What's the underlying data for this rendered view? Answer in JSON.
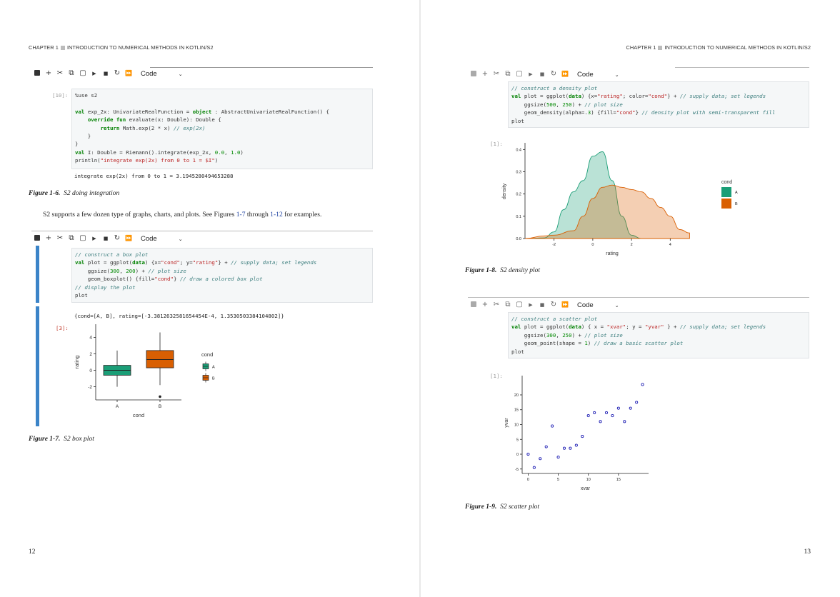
{
  "left_page": {
    "header": {
      "chapter": "CHAPTER 1",
      "title": "INTRODUCTION TO NUMERICAL METHODS IN KOTLIN/S2"
    },
    "page_number": "12",
    "toolbar1": {
      "cell_type": "Code"
    },
    "cell1": {
      "prompt": "[10]:",
      "code_lines": [
        [
          {
            "c": "tx",
            "t": "%use s2"
          }
        ],
        [],
        [
          {
            "c": "kw",
            "t": "val "
          },
          {
            "c": "tx",
            "t": "exp_2x: UnivariateRealFunction = "
          },
          {
            "c": "kw",
            "t": "object"
          },
          {
            "c": "tx",
            "t": " : AbstractUnivariateRealFunction() {"
          }
        ],
        [
          {
            "c": "tx",
            "t": "    "
          },
          {
            "c": "kw",
            "t": "override fun "
          },
          {
            "c": "tx",
            "t": "evaluate(x: Double): Double {"
          }
        ],
        [
          {
            "c": "tx",
            "t": "        "
          },
          {
            "c": "kw",
            "t": "return "
          },
          {
            "c": "tx",
            "t": "Math.exp(2 * x) "
          },
          {
            "c": "cm",
            "t": "// exp(2x)"
          }
        ],
        [
          {
            "c": "tx",
            "t": "    }"
          }
        ],
        [
          {
            "c": "tx",
            "t": "}"
          }
        ],
        [
          {
            "c": "kw",
            "t": "val "
          },
          {
            "c": "tx",
            "t": "I: Double = Riemann().integrate(exp_2x, "
          },
          {
            "c": "num",
            "t": "0.0"
          },
          {
            "c": "tx",
            "t": ", "
          },
          {
            "c": "num",
            "t": "1.0"
          },
          {
            "c": "tx",
            "t": ")"
          }
        ],
        [
          {
            "c": "tx",
            "t": "println("
          },
          {
            "c": "str",
            "t": "\"integrate exp(2x) from 0 to 1 = $I\""
          },
          {
            "c": "tx",
            "t": ")"
          }
        ]
      ],
      "output": "integrate exp(2x) from 0 to 1 = 3.1945280494653288"
    },
    "caption1": {
      "label": "Figure 1-6.",
      "text": "S2 doing integration"
    },
    "body_text": {
      "before": "S2 supports a few dozen type of graphs, charts, and plots. See Figures ",
      "link1": "1-7",
      "middle": " through ",
      "link2": "1-12",
      "after": " for examples."
    },
    "toolbar2": {
      "cell_type": "Code"
    },
    "cell2": {
      "code_lines": [
        [
          {
            "c": "cm",
            "t": "// construct a box plot"
          }
        ],
        [
          {
            "c": "kw",
            "t": "val "
          },
          {
            "c": "tx",
            "t": "plot = ggplot("
          },
          {
            "c": "kw",
            "t": "data"
          },
          {
            "c": "tx",
            "t": ") {x="
          },
          {
            "c": "str",
            "t": "\"cond\""
          },
          {
            "c": "tx",
            "t": "; y="
          },
          {
            "c": "str",
            "t": "\"rating\""
          },
          {
            "c": "tx",
            "t": "} + "
          },
          {
            "c": "cm",
            "t": "// supply data; set legends"
          }
        ],
        [
          {
            "c": "tx",
            "t": "    ggsize("
          },
          {
            "c": "num",
            "t": "300"
          },
          {
            "c": "tx",
            "t": ", "
          },
          {
            "c": "num",
            "t": "200"
          },
          {
            "c": "tx",
            "t": ") + "
          },
          {
            "c": "cm",
            "t": "// plot size"
          }
        ],
        [
          {
            "c": "tx",
            "t": "    geom_boxplot() {fill="
          },
          {
            "c": "str",
            "t": "\"cond\""
          },
          {
            "c": "tx",
            "t": "} "
          },
          {
            "c": "cm",
            "t": "// draw a colored box plot"
          }
        ],
        [
          {
            "c": "cm",
            "t": "// display the plot"
          }
        ],
        [
          {
            "c": "tx",
            "t": "plot"
          }
        ]
      ],
      "prompt": "[3]:",
      "output": "{cond=[A, B], rating=[-3.3812632581654454E-4, 1.3530503384104802]}"
    },
    "boxplot": {
      "chart_data": {
        "type": "box",
        "xlabel": "cond",
        "ylabel": "rating",
        "categories": [
          "A",
          "B"
        ],
        "yticks": [
          "4",
          "2",
          "0",
          "-2"
        ],
        "ylim": [
          -3.6,
          5.6
        ],
        "boxes": [
          {
            "name": "A",
            "whisker_low": -2.0,
            "q1": -0.6,
            "median": 0.0,
            "q3": 0.6,
            "whisker_high": 2.4,
            "outliers": [],
            "color": "#1b9e77"
          },
          {
            "name": "B",
            "whisker_low": -1.8,
            "q1": 0.3,
            "median": 1.3,
            "q3": 2.4,
            "whisker_high": 4.6,
            "outliers": [
              -3.2
            ],
            "color": "#d95f02"
          }
        ],
        "legend": {
          "title": "cond",
          "entries": [
            "A",
            "B"
          ],
          "placement": "right"
        }
      }
    },
    "caption2": {
      "label": "Figure 1-7.",
      "text": "S2 box plot"
    }
  },
  "right_page": {
    "header": {
      "chapter": "CHAPTER 1",
      "title": "INTRODUCTION TO NUMERICAL METHODS IN KOTLIN/S2"
    },
    "page_number": "13",
    "toolbar1": {
      "cell_type": "Code"
    },
    "cell1": {
      "code_lines": [
        [
          {
            "c": "cm",
            "t": "// construct a density plot"
          }
        ],
        [
          {
            "c": "kw",
            "t": "val "
          },
          {
            "c": "tx",
            "t": "plot = ggplot("
          },
          {
            "c": "kw",
            "t": "data"
          },
          {
            "c": "tx",
            "t": ") {x="
          },
          {
            "c": "str",
            "t": "\"rating\""
          },
          {
            "c": "tx",
            "t": "; color="
          },
          {
            "c": "str",
            "t": "\"cond\""
          },
          {
            "c": "tx",
            "t": "} + "
          },
          {
            "c": "cm",
            "t": "// supply data; set legends"
          }
        ],
        [
          {
            "c": "tx",
            "t": "    ggsize("
          },
          {
            "c": "num",
            "t": "500"
          },
          {
            "c": "tx",
            "t": ", "
          },
          {
            "c": "num",
            "t": "250"
          },
          {
            "c": "tx",
            "t": ") + "
          },
          {
            "c": "cm",
            "t": "// plot size"
          }
        ],
        [
          {
            "c": "tx",
            "t": "    geom_density(alpha=."
          },
          {
            "c": "num",
            "t": "3"
          },
          {
            "c": "tx",
            "t": ") {fill="
          },
          {
            "c": "str",
            "t": "\"cond\""
          },
          {
            "c": "tx",
            "t": "} "
          },
          {
            "c": "cm",
            "t": "// density plot with semi-transparent fill"
          }
        ],
        [
          {
            "c": "tx",
            "t": "plot"
          }
        ]
      ],
      "prompt": "[1]:"
    },
    "density": {
      "chart_data": {
        "type": "area",
        "xlabel": "rating",
        "ylabel": "density",
        "xlim": [
          -3.5,
          5.5
        ],
        "ylim": [
          0,
          0.43
        ],
        "xticks": [
          -2,
          0,
          2,
          4
        ],
        "yticks": [
          0.0,
          0.1,
          0.2,
          0.3,
          0.4
        ],
        "ytick_labels": [
          "0.0",
          "0.1",
          "0.2",
          "0.3",
          "0.4"
        ],
        "series": [
          {
            "name": "A",
            "color": "#1b9e77",
            "x": [
              -3.5,
              -2.5,
              -2.0,
              -1.5,
              -1.0,
              -0.5,
              0.0,
              0.5,
              1.0,
              1.5,
              2.0,
              2.5,
              3.0
            ],
            "y": [
              0.0,
              0.003,
              0.03,
              0.13,
              0.21,
              0.26,
              0.37,
              0.39,
              0.26,
              0.1,
              0.015,
              0.0,
              0.0
            ]
          },
          {
            "name": "B",
            "color": "#d95f02",
            "x": [
              -3.5,
              -2.5,
              -2.0,
              -1.0,
              -0.5,
              0.0,
              0.5,
              1.0,
              1.5,
              2.0,
              2.5,
              3.0,
              3.5,
              4.0,
              4.5,
              5.0
            ],
            "y": [
              0.0,
              0.012,
              0.015,
              0.035,
              0.1,
              0.18,
              0.23,
              0.24,
              0.23,
              0.22,
              0.21,
              0.18,
              0.14,
              0.1,
              0.04,
              0.025
            ]
          }
        ],
        "legend": {
          "title": "cond",
          "entries": [
            "A",
            "B"
          ],
          "placement": "right"
        }
      }
    },
    "caption1": {
      "label": "Figure 1-8.",
      "text": "S2 density plot"
    },
    "toolbar2": {
      "cell_type": "Code"
    },
    "cell2": {
      "code_lines": [
        [
          {
            "c": "cm",
            "t": "// construct a scatter plot"
          }
        ],
        [
          {
            "c": "kw",
            "t": "val "
          },
          {
            "c": "tx",
            "t": "plot = ggplot("
          },
          {
            "c": "kw",
            "t": "data"
          },
          {
            "c": "tx",
            "t": ") { x = "
          },
          {
            "c": "str",
            "t": "\"xvar\""
          },
          {
            "c": "tx",
            "t": "; y = "
          },
          {
            "c": "str",
            "t": "\"yvar\""
          },
          {
            "c": "tx",
            "t": " } + "
          },
          {
            "c": "cm",
            "t": "// supply data; set legends"
          }
        ],
        [
          {
            "c": "tx",
            "t": "    ggsize("
          },
          {
            "c": "num",
            "t": "300"
          },
          {
            "c": "tx",
            "t": ", "
          },
          {
            "c": "num",
            "t": "250"
          },
          {
            "c": "tx",
            "t": ") + "
          },
          {
            "c": "cm",
            "t": "// plot size"
          }
        ],
        [
          {
            "c": "tx",
            "t": "    geom_point(shape = "
          },
          {
            "c": "num",
            "t": "1"
          },
          {
            "c": "tx",
            "t": ") "
          },
          {
            "c": "cm",
            "t": "// draw a basic scatter plot"
          }
        ],
        [
          {
            "c": "tx",
            "t": "plot"
          }
        ]
      ],
      "prompt": "[1]:"
    },
    "scatter": {
      "chart_data": {
        "type": "scatter",
        "xlabel": "xvar",
        "ylabel": "yvar",
        "xlim": [
          -1,
          20
        ],
        "ylim": [
          -6.5,
          26.5
        ],
        "xticks": [
          0,
          5,
          10,
          15
        ],
        "yticks": [
          -5,
          0,
          5,
          10,
          15,
          20
        ],
        "color": "#1f1fb4",
        "points": [
          [
            0,
            0
          ],
          [
            1,
            -4.5
          ],
          [
            2,
            -1.5
          ],
          [
            3,
            2.5
          ],
          [
            4,
            9.5
          ],
          [
            5,
            -1
          ],
          [
            6,
            2
          ],
          [
            7,
            2
          ],
          [
            8,
            3
          ],
          [
            9,
            6
          ],
          [
            10,
            13
          ],
          [
            11,
            14
          ],
          [
            12,
            11
          ],
          [
            13,
            14
          ],
          [
            14,
            13
          ],
          [
            15,
            15.5
          ],
          [
            16,
            11
          ],
          [
            17,
            15.5
          ],
          [
            18,
            17.5
          ],
          [
            19,
            23.5
          ]
        ]
      }
    },
    "caption2": {
      "label": "Figure 1-9.",
      "text": "S2 scatter plot"
    }
  }
}
